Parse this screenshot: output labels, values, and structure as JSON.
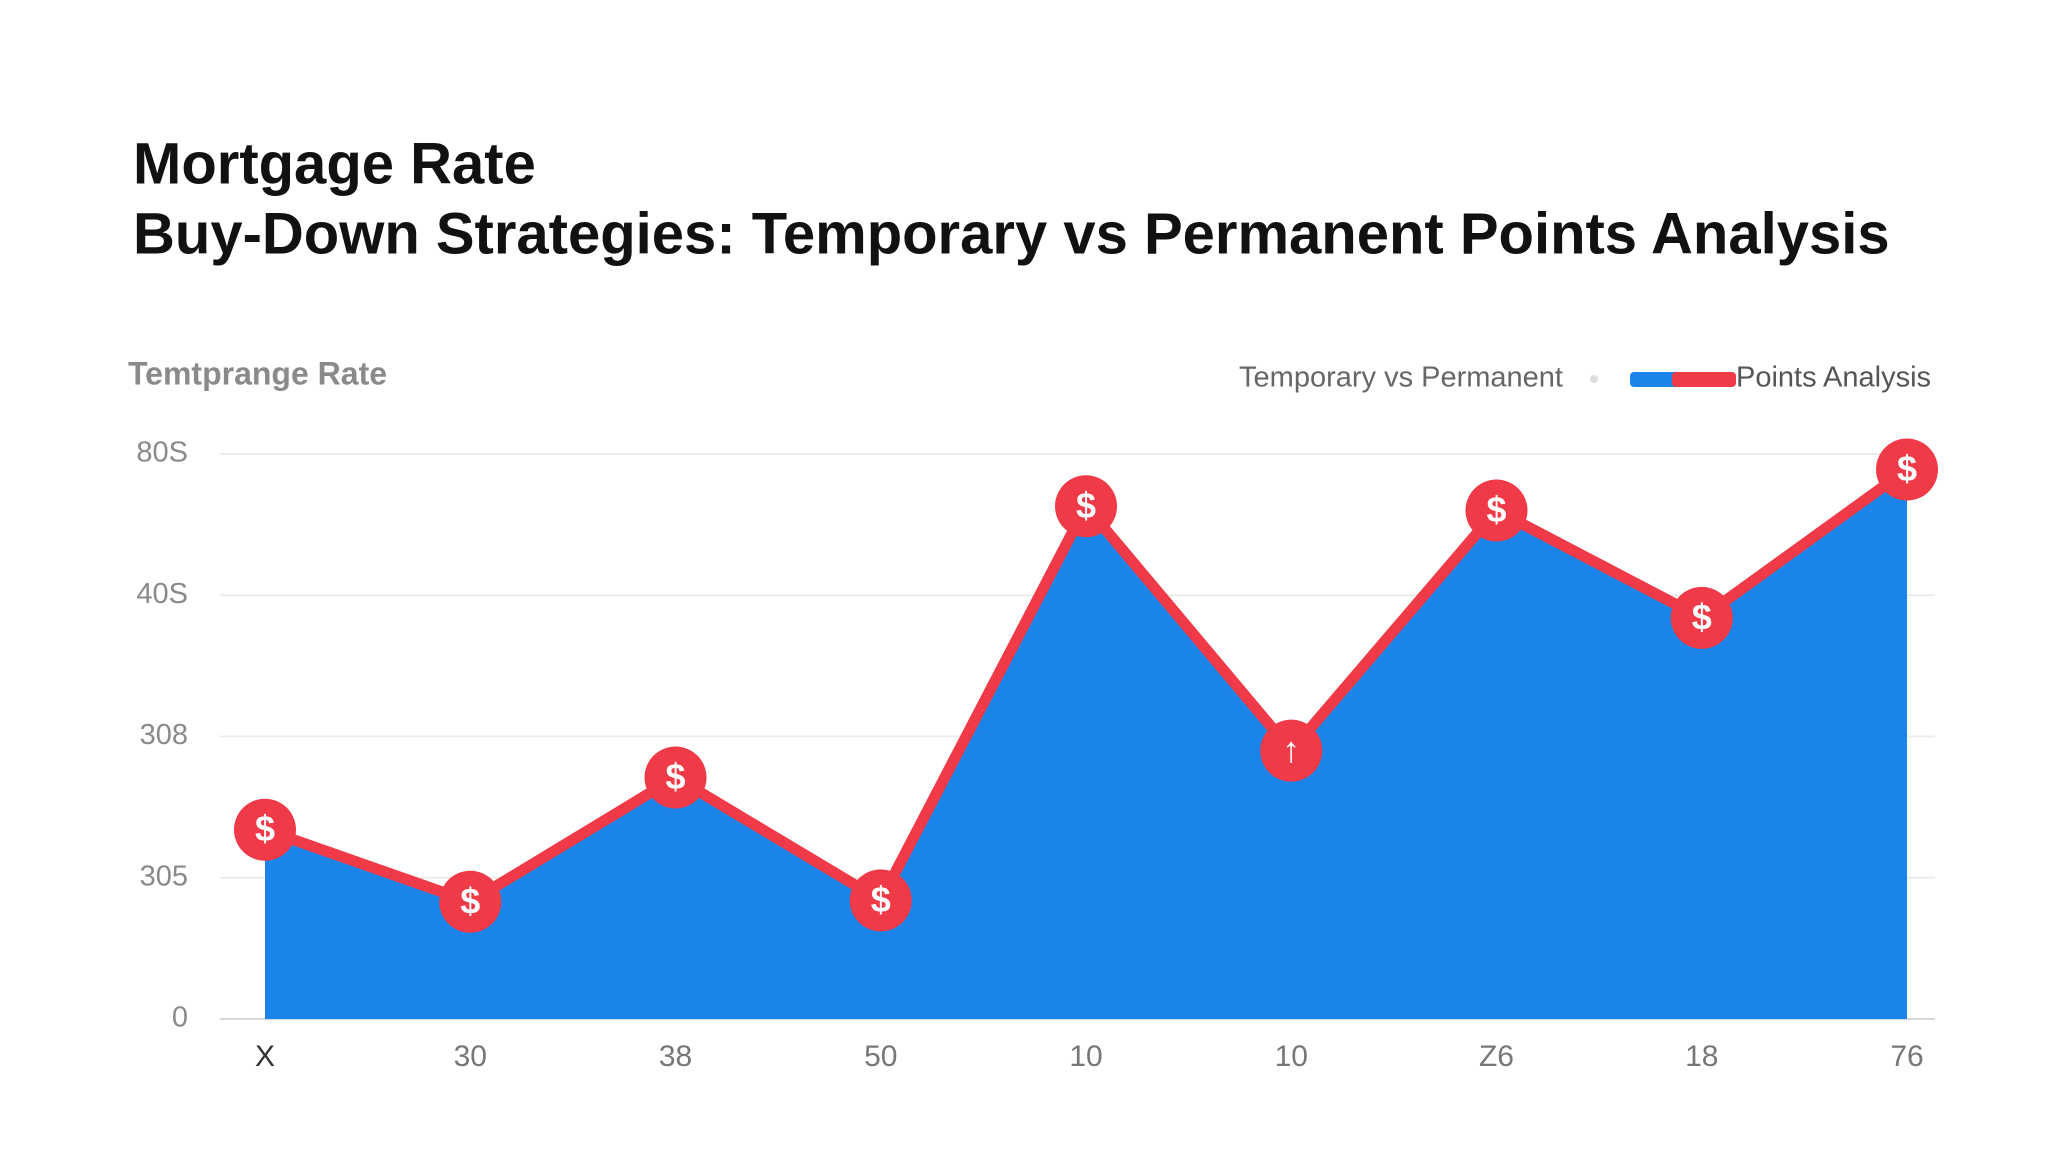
{
  "chart_data": {
    "type": "area",
    "title": [
      "Mortgage Rate",
      "Buy-Down Strategies: Temporary vs Permanent Points Analysis"
    ],
    "ylabel": "Temtprange Rate",
    "legend_title": "Temporary vs Permanent",
    "legend": "top-right",
    "grid": true,
    "categories": [
      "X",
      "30",
      "38",
      "50",
      "10",
      "10",
      "Z6",
      "18",
      "76"
    ],
    "ylim": [
      0,
      4
    ],
    "yticks": [
      {
        "value": 0,
        "label": "0"
      },
      {
        "value": 1,
        "label": "305"
      },
      {
        "value": 2,
        "label": "308"
      },
      {
        "value": 3,
        "label": "40S"
      },
      {
        "value": 4,
        "label": "80S"
      }
    ],
    "series": [
      {
        "name": "Points Analysis",
        "color": "#1a84e8",
        "line_color": "#f03a47",
        "values": [
          1.34,
          0.83,
          1.71,
          0.84,
          3.63,
          1.9,
          3.6,
          2.84,
          3.89
        ],
        "marker_symbols": [
          "$",
          "$",
          "$",
          "$",
          "$",
          "↑",
          "$",
          "$",
          "$"
        ]
      }
    ]
  }
}
